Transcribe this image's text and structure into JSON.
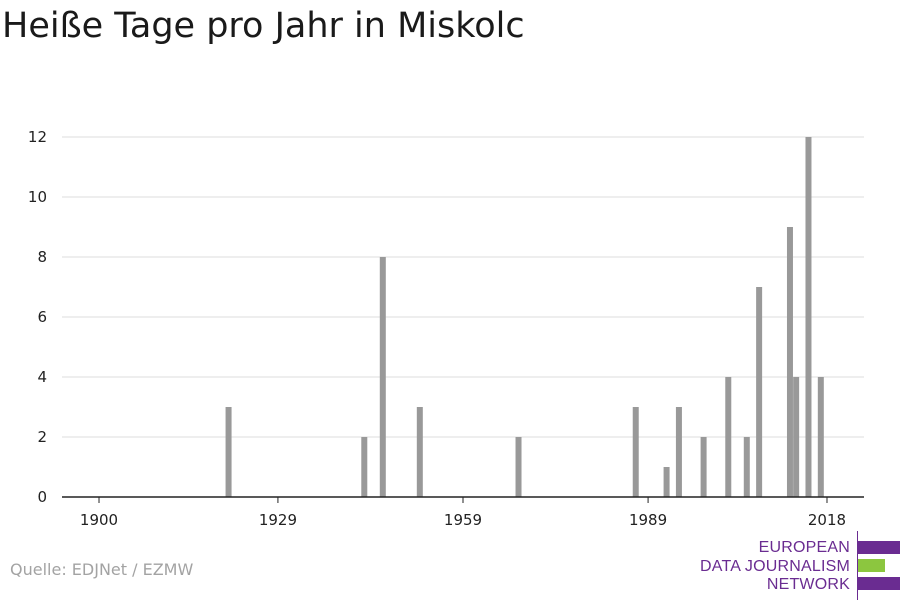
{
  "title": "Heiße Tage pro Jahr in Miskolc",
  "source": "Quelle: EDJNet / EZMW",
  "logo": {
    "line1": "EUROPEAN",
    "line2": "DATA JOURNALISM",
    "line3": "NETWORK",
    "colors": {
      "primary": "#6a2c91",
      "accent": "#8cc63f"
    }
  },
  "chart_data": {
    "type": "bar",
    "title": "Heiße Tage pro Jahr in Miskolc",
    "xlabel": "",
    "ylabel": "",
    "xlim": [
      1894,
      2024
    ],
    "ylim": [
      0,
      12
    ],
    "x_ticks": [
      1900,
      1929,
      1959,
      1989,
      2018
    ],
    "y_ticks": [
      0,
      2,
      4,
      6,
      8,
      10,
      12
    ],
    "grid": true,
    "bar_color": "#999999",
    "x": [
      1921,
      1943,
      1946,
      1952,
      1968,
      1987,
      1992,
      1994,
      1998,
      2002,
      2005,
      2007,
      2012,
      2013,
      2015,
      2017
    ],
    "values": [
      3,
      2,
      8,
      3,
      2,
      3,
      1,
      3,
      2,
      4,
      2,
      7,
      9,
      4,
      12,
      4
    ]
  }
}
